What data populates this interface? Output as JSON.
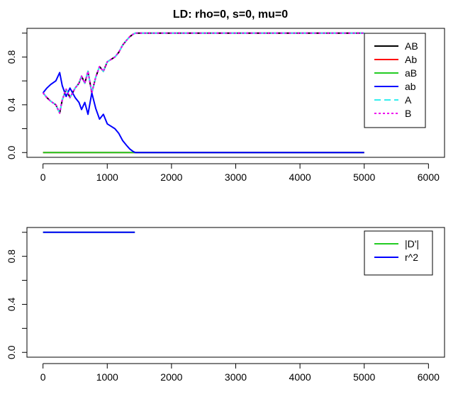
{
  "chart_data": [
    {
      "type": "line",
      "title": "LD: rho=0, s=0, mu=0",
      "xlabel": "",
      "ylabel": "",
      "xlim": [
        -250,
        6250
      ],
      "ylim": [
        -0.04,
        1.04
      ],
      "x_ticks": [
        0,
        1000,
        2000,
        3000,
        4000,
        5000,
        6000
      ],
      "x_tick_labels": [
        "0",
        "1000",
        "2000",
        "3000",
        "4000",
        "5000",
        "6000"
      ],
      "y_ticks": [
        0.0,
        0.2,
        0.4,
        0.6,
        0.8,
        1.0
      ],
      "y_tick_labels": [
        "0.0",
        "",
        "0.4",
        "",
        "0.8",
        ""
      ],
      "grid": false,
      "legend_position": "top-right",
      "series": [
        {
          "name": "AB",
          "color": "#000000",
          "style": "solid",
          "width": 2,
          "x": [
            0,
            60,
            120,
            200,
            260,
            300,
            360,
            420,
            500,
            560,
            600,
            650,
            700,
            760,
            820,
            880,
            940,
            1000,
            1060,
            1120,
            1180,
            1240,
            1300,
            1350,
            1400,
            1440,
            5000
          ],
          "y": [
            0.5,
            0.46,
            0.43,
            0.4,
            0.33,
            0.44,
            0.53,
            0.46,
            0.54,
            0.58,
            0.64,
            0.58,
            0.68,
            0.5,
            0.63,
            0.72,
            0.68,
            0.76,
            0.78,
            0.8,
            0.84,
            0.9,
            0.94,
            0.97,
            0.99,
            1.0,
            1.0
          ]
        },
        {
          "name": "Ab",
          "color": "#ff0000",
          "style": "solid",
          "width": 2,
          "x": [
            0,
            1440,
            5000
          ],
          "y": [
            0.0,
            0.0,
            0.0
          ]
        },
        {
          "name": "aB",
          "color": "#22cc22",
          "style": "solid",
          "width": 2,
          "x": [
            0,
            1440,
            5000
          ],
          "y": [
            0.0,
            0.0,
            0.0
          ]
        },
        {
          "name": "ab",
          "color": "#0000ff",
          "style": "solid",
          "width": 2,
          "x": [
            0,
            60,
            120,
            200,
            260,
            300,
            360,
            420,
            500,
            560,
            600,
            650,
            700,
            760,
            820,
            880,
            940,
            1000,
            1060,
            1120,
            1180,
            1240,
            1300,
            1350,
            1400,
            1440,
            5000
          ],
          "y": [
            0.5,
            0.54,
            0.57,
            0.6,
            0.67,
            0.56,
            0.47,
            0.54,
            0.46,
            0.42,
            0.36,
            0.42,
            0.32,
            0.5,
            0.37,
            0.28,
            0.32,
            0.24,
            0.22,
            0.2,
            0.16,
            0.1,
            0.06,
            0.03,
            0.01,
            0.0,
            0.0
          ]
        },
        {
          "name": "A",
          "color": "#33eeee",
          "style": "dashed",
          "width": 2,
          "x": [
            0,
            60,
            120,
            200,
            260,
            300,
            360,
            420,
            500,
            560,
            600,
            650,
            700,
            760,
            820,
            880,
            940,
            1000,
            1060,
            1120,
            1180,
            1240,
            1300,
            1350,
            1400,
            1440,
            5000
          ],
          "y": [
            0.5,
            0.46,
            0.43,
            0.4,
            0.33,
            0.44,
            0.53,
            0.46,
            0.54,
            0.58,
            0.64,
            0.58,
            0.68,
            0.5,
            0.63,
            0.72,
            0.68,
            0.76,
            0.78,
            0.8,
            0.84,
            0.9,
            0.94,
            0.97,
            0.99,
            1.0,
            1.0
          ]
        },
        {
          "name": "B",
          "color": "#ee00ee",
          "style": "dotted",
          "width": 2,
          "x": [
            0,
            60,
            120,
            200,
            260,
            300,
            360,
            420,
            500,
            560,
            600,
            650,
            700,
            760,
            820,
            880,
            940,
            1000,
            1060,
            1120,
            1180,
            1240,
            1300,
            1350,
            1400,
            1440,
            5000
          ],
          "y": [
            0.5,
            0.46,
            0.43,
            0.4,
            0.33,
            0.44,
            0.53,
            0.46,
            0.54,
            0.58,
            0.64,
            0.58,
            0.68,
            0.5,
            0.63,
            0.72,
            0.68,
            0.76,
            0.78,
            0.8,
            0.84,
            0.9,
            0.94,
            0.97,
            0.99,
            1.0,
            1.0
          ]
        }
      ]
    },
    {
      "type": "line",
      "title": "",
      "xlabel": "",
      "ylabel": "",
      "xlim": [
        -250,
        6250
      ],
      "ylim": [
        -0.04,
        1.04
      ],
      "x_ticks": [
        0,
        1000,
        2000,
        3000,
        4000,
        5000,
        6000
      ],
      "x_tick_labels": [
        "0",
        "1000",
        "2000",
        "3000",
        "4000",
        "5000",
        "6000"
      ],
      "y_ticks": [
        0.0,
        0.2,
        0.4,
        0.6,
        0.8,
        1.0
      ],
      "y_tick_labels": [
        "0.0",
        "",
        "0.4",
        "",
        "0.8",
        ""
      ],
      "grid": false,
      "legend_position": "top-right",
      "series": [
        {
          "name": "|D'|",
          "color": "#22cc22",
          "style": "solid",
          "width": 2,
          "x": [
            0,
            1430
          ],
          "y": [
            1.0,
            1.0
          ]
        },
        {
          "name": "r^2",
          "color": "#0000ff",
          "style": "solid",
          "width": 2,
          "x": [
            0,
            1430
          ],
          "y": [
            1.0,
            1.0
          ]
        }
      ]
    }
  ]
}
